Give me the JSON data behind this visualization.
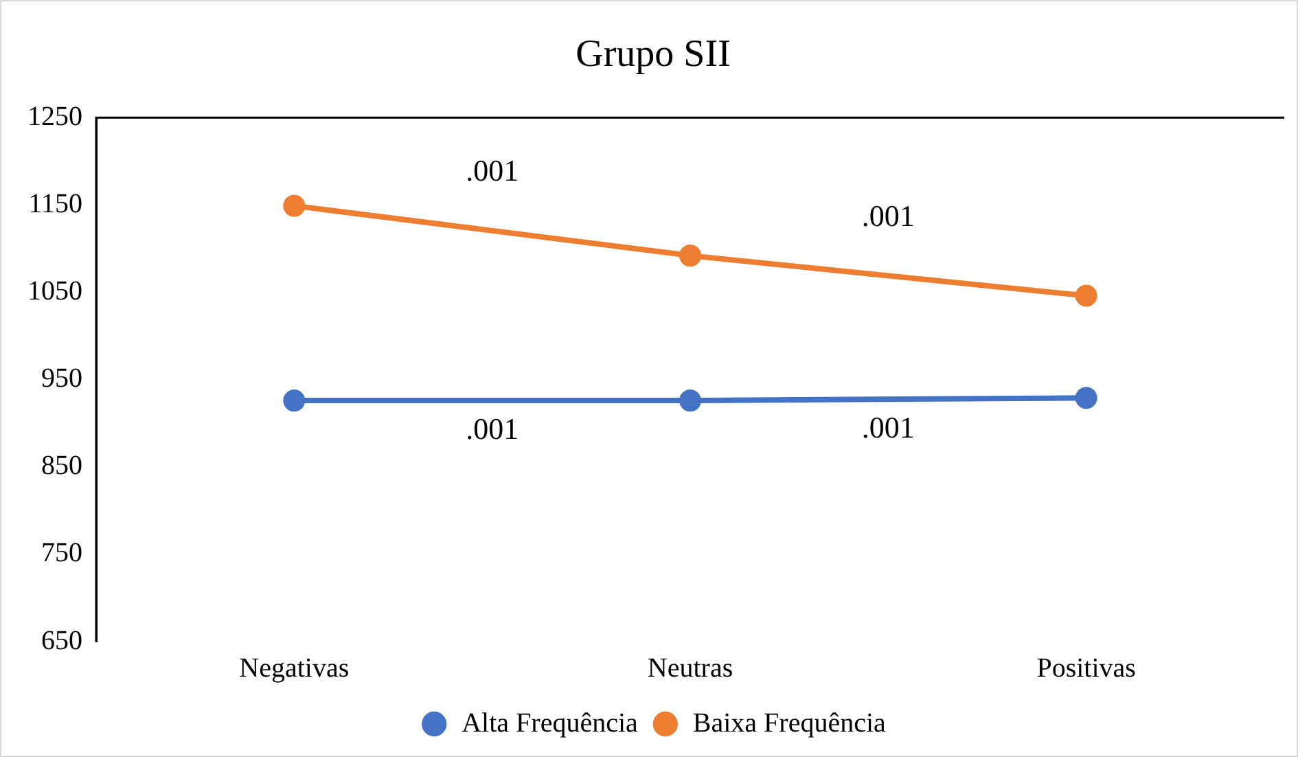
{
  "chart_data": {
    "type": "line",
    "title": "Grupo SII",
    "categories": [
      "Negativas",
      "Neutras",
      "Positivas"
    ],
    "series": [
      {
        "name": "Alta Frequência",
        "color": "#4472c4",
        "values": [
          926,
          926,
          929
        ]
      },
      {
        "name": "Baixa Frequência",
        "color": "#ed7d31",
        "values": [
          1149,
          1092,
          1046
        ]
      }
    ],
    "ylim": [
      650,
      1250
    ],
    "yticks": [
      650,
      750,
      850,
      950,
      1050,
      1150,
      1250
    ],
    "grid": false,
    "legend": "bottom",
    "marker": "circle",
    "line_style": "solid",
    "annotations": [
      ".001",
      ".001",
      ".001",
      ".001"
    ]
  }
}
